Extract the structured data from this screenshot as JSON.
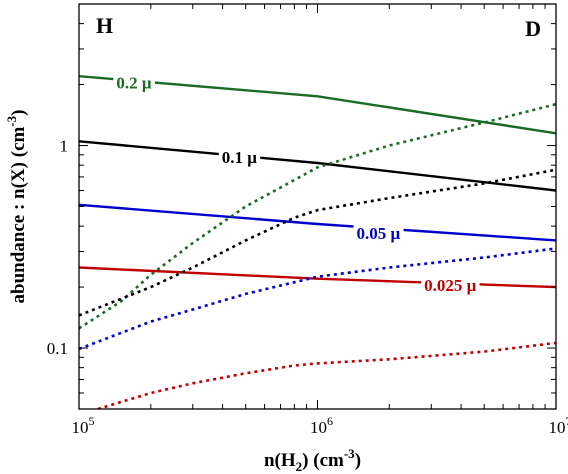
{
  "chart_data": {
    "type": "line",
    "x_scale": "log",
    "y_scale": "log",
    "xlim": [
      100000,
      10000000
    ],
    "ylim": [
      0.05,
      5
    ],
    "x_ticks": [
      100000,
      1000000,
      10000000
    ],
    "y_ticks": [
      0.1,
      1
    ],
    "x_tick_labels": [
      {
        "base": "10",
        "exp": "5"
      },
      {
        "base": "10",
        "exp": "6"
      },
      {
        "base": "10",
        "exp": "7"
      }
    ],
    "y_tick_labels": [
      "0.1",
      "1"
    ],
    "xlabel": {
      "pre": "n(H",
      "sub": "2",
      "mid": ")  (cm",
      "sup": "-3",
      "post": ")"
    },
    "ylabel": {
      "pre": "abundance : n(X)   (cm",
      "sup": "-3",
      "post": ")"
    },
    "corner_labels": {
      "left": "H",
      "right": "D"
    },
    "grid": false,
    "series": [
      {
        "name": "0.2 μ",
        "style": "solid",
        "color": "#1a6b25",
        "x": [
          100000,
          1000000,
          10000000
        ],
        "y": [
          2.2,
          1.75,
          1.15
        ],
        "label_at": [
          170000,
          2.05
        ]
      },
      {
        "name": "0.1 μ",
        "style": "solid",
        "color": "#000000",
        "x": [
          100000,
          1000000,
          10000000
        ],
        "y": [
          1.05,
          0.82,
          0.6
        ],
        "label_at": [
          470000,
          0.88
        ]
      },
      {
        "name": "0.05 μ",
        "style": "solid",
        "color": "#0000cc",
        "x": [
          100000,
          1000000,
          10000000
        ],
        "y": [
          0.51,
          0.41,
          0.34
        ],
        "label_at": [
          1800000,
          0.37
        ]
      },
      {
        "name": "0.025 μ",
        "style": "solid",
        "color": "#c00000",
        "x": [
          100000,
          1000000,
          10000000
        ],
        "y": [
          0.25,
          0.22,
          0.2
        ],
        "label_at": [
          3600000,
          0.205
        ]
      },
      {
        "style": "dotted",
        "color": "#1a6b25",
        "x": [
          100000,
          150000,
          200000,
          300000,
          500000,
          1000000,
          2000000,
          5000000,
          10000000
        ],
        "y": [
          0.125,
          0.17,
          0.23,
          0.33,
          0.5,
          0.78,
          1.0,
          1.3,
          1.6
        ]
      },
      {
        "style": "dotted",
        "color": "#000000",
        "x": [
          100000,
          200000,
          300000,
          500000,
          800000,
          1000000,
          2000000,
          5000000,
          10000000
        ],
        "y": [
          0.145,
          0.2,
          0.25,
          0.34,
          0.44,
          0.48,
          0.55,
          0.65,
          0.76
        ]
      },
      {
        "style": "dotted",
        "color": "#0000cc",
        "x": [
          100000,
          200000,
          300000,
          500000,
          1000000,
          2000000,
          5000000,
          10000000
        ],
        "y": [
          0.099,
          0.135,
          0.155,
          0.185,
          0.225,
          0.25,
          0.28,
          0.31
        ]
      },
      {
        "style": "dotted",
        "color": "#c00000",
        "x": [
          120000,
          200000,
          300000,
          500000,
          800000,
          1000000,
          2000000,
          5000000,
          10000000
        ],
        "y": [
          0.05,
          0.06,
          0.067,
          0.075,
          0.082,
          0.084,
          0.088,
          0.096,
          0.106
        ]
      }
    ]
  }
}
